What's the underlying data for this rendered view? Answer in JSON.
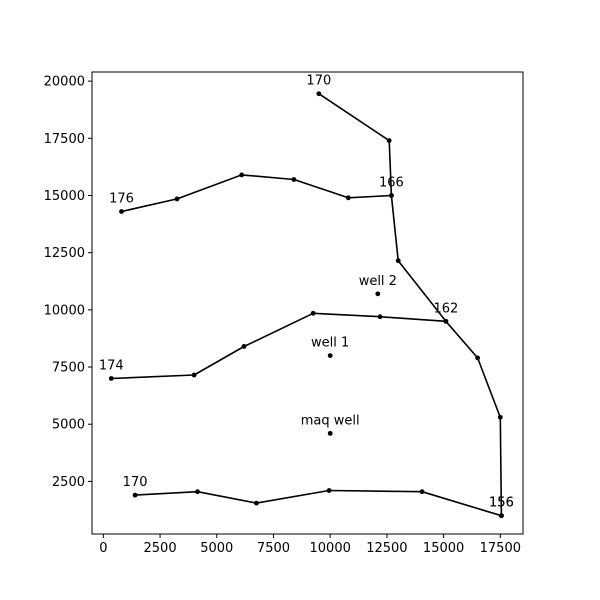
{
  "chart_data": {
    "type": "line",
    "title": "",
    "xlabel": "",
    "ylabel": "",
    "xlim": [
      -500,
      18500
    ],
    "ylim": [
      200,
      20400
    ],
    "xticks": [
      0,
      2500,
      5000,
      7500,
      10000,
      12500,
      15000,
      17500
    ],
    "yticks": [
      2500,
      5000,
      7500,
      10000,
      12500,
      15000,
      17500,
      20000
    ],
    "xtick_labels": [
      "0",
      "2500",
      "5000",
      "7500",
      "10000",
      "12500",
      "15000",
      "17500"
    ],
    "ytick_labels": [
      "2500",
      "5000",
      "7500",
      "10000",
      "12500",
      "15000",
      "17500",
      "20000"
    ],
    "grid": false,
    "line_color": "#000000",
    "series": [
      {
        "x": [
          9500,
          12600,
          12700,
          13000,
          15100,
          16500,
          17500,
          17550
        ],
        "y": [
          19450,
          17400,
          15000,
          12150,
          9500,
          7900,
          5300,
          1000
        ]
      },
      {
        "x": [
          800,
          3250,
          6100,
          8400,
          10800,
          12700
        ],
        "y": [
          14300,
          14850,
          15900,
          15700,
          14900,
          15000
        ]
      },
      {
        "x": [
          350,
          4000,
          6200,
          9250,
          12200,
          15100
        ],
        "y": [
          7000,
          7150,
          8400,
          9850,
          9700,
          9500
        ]
      },
      {
        "x": [
          1400,
          4150,
          6750,
          9950,
          14050,
          17550
        ],
        "y": [
          1900,
          2050,
          1550,
          2100,
          2050,
          1000
        ]
      }
    ],
    "points": [
      {
        "x": 12100,
        "y": 10700
      },
      {
        "x": 10000,
        "y": 8000
      },
      {
        "x": 10000,
        "y": 4600
      }
    ],
    "annotations": [
      {
        "text": "170",
        "x": 9500,
        "y": 19450
      },
      {
        "text": "166",
        "x": 12700,
        "y": 15000
      },
      {
        "text": "176",
        "x": 800,
        "y": 14300
      },
      {
        "text": "well 2",
        "x": 12100,
        "y": 10700
      },
      {
        "text": "162",
        "x": 15100,
        "y": 9500
      },
      {
        "text": "well 1",
        "x": 10000,
        "y": 8000
      },
      {
        "text": "174",
        "x": 350,
        "y": 7000
      },
      {
        "text": "maq well",
        "x": 10000,
        "y": 4600
      },
      {
        "text": "170",
        "x": 1400,
        "y": 1900
      },
      {
        "text": "156",
        "x": 17550,
        "y": 1000
      },
      {
        "text": "156",
        "x": 17550,
        "y": 1000
      }
    ]
  }
}
